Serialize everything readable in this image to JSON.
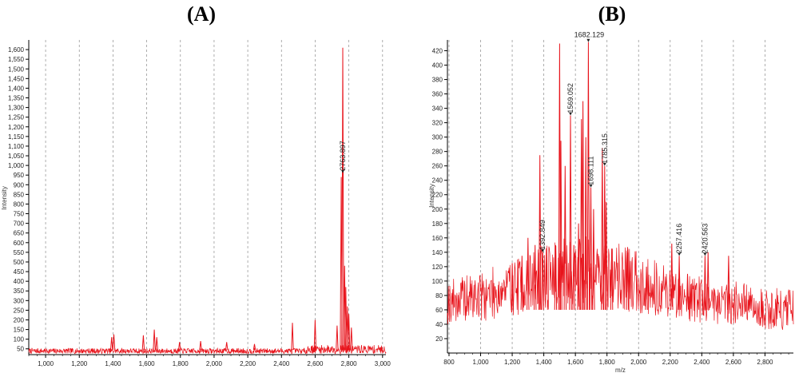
{
  "chart_data": [
    {
      "type": "line",
      "panel_label": "(A)",
      "ylabel": "Intensity",
      "xlabel": "",
      "xlim": [
        900,
        3020
      ],
      "ylim": [
        20,
        1650
      ],
      "x_ticks": [
        "1,000",
        "1,200",
        "1,400",
        "1,600",
        "1,800",
        "2,000",
        "2,200",
        "2,400",
        "2,600",
        "2,800",
        "3,000"
      ],
      "x_tick_values": [
        1000,
        1200,
        1400,
        1600,
        1800,
        2000,
        2200,
        2400,
        2600,
        2800,
        3000
      ],
      "y_ticks": [
        "50",
        "100",
        "150",
        "200",
        "250",
        "300",
        "350",
        "400",
        "450",
        "500",
        "550",
        "600",
        "650",
        "700",
        "750",
        "800",
        "850",
        "900",
        "950",
        "1,000",
        "1,050",
        "1,100",
        "1,150",
        "1,200",
        "1,250",
        "1,300",
        "1,350",
        "1,400",
        "1,450",
        "1,500",
        "1,550",
        "1,600"
      ],
      "y_tick_values": [
        50,
        100,
        150,
        200,
        250,
        300,
        350,
        400,
        450,
        500,
        550,
        600,
        650,
        700,
        750,
        800,
        850,
        900,
        950,
        1000,
        1050,
        1100,
        1150,
        1200,
        1250,
        1300,
        1350,
        1400,
        1450,
        1500,
        1550,
        1600
      ],
      "grid": "vertical dashed",
      "color": "#e8141c",
      "peaks": [
        {
          "x": 1392,
          "y": 110
        },
        {
          "x": 1405,
          "y": 125
        },
        {
          "x": 1580,
          "y": 120
        },
        {
          "x": 1645,
          "y": 150
        },
        {
          "x": 1660,
          "y": 110
        },
        {
          "x": 1795,
          "y": 85
        },
        {
          "x": 1920,
          "y": 90
        },
        {
          "x": 2075,
          "y": 85
        },
        {
          "x": 2240,
          "y": 75
        },
        {
          "x": 2465,
          "y": 185
        },
        {
          "x": 2600,
          "y": 200
        },
        {
          "x": 2730,
          "y": 170
        },
        {
          "x": 2755,
          "y": 940
        },
        {
          "x": 2763.897,
          "y": 1610
        },
        {
          "x": 2775,
          "y": 480
        },
        {
          "x": 2782,
          "y": 370
        },
        {
          "x": 2792,
          "y": 270
        },
        {
          "x": 2800,
          "y": 230
        },
        {
          "x": 2815,
          "y": 160
        }
      ],
      "annotations": [
        {
          "text": "2763.897",
          "x": 2763.897,
          "y": 960
        }
      ]
    },
    {
      "type": "line",
      "panel_label": "(B)",
      "ylabel": "Intensity",
      "xlabel": "m/z",
      "xlim": [
        790,
        2980
      ],
      "ylim": [
        0,
        435
      ],
      "x_ticks": [
        "800",
        "1,000",
        "1,200",
        "1,400",
        "1,600",
        "1,800",
        "2,000",
        "2,200",
        "2,400",
        "2,600",
        "2,800"
      ],
      "x_tick_values": [
        800,
        1000,
        1200,
        1400,
        1600,
        1800,
        2000,
        2200,
        2400,
        2600,
        2800
      ],
      "y_ticks": [
        "20",
        "40",
        "60",
        "80",
        "100",
        "120",
        "140",
        "160",
        "180",
        "200",
        "220",
        "240",
        "260",
        "280",
        "300",
        "320",
        "340",
        "360",
        "380",
        "400",
        "420"
      ],
      "y_tick_values": [
        20,
        40,
        60,
        80,
        100,
        120,
        140,
        160,
        180,
        200,
        220,
        240,
        260,
        280,
        300,
        320,
        340,
        360,
        380,
        400,
        420
      ],
      "grid": "vertical dashed",
      "color": "#e8141c",
      "peaks": [
        {
          "x": 1200,
          "y": 125
        },
        {
          "x": 1262,
          "y": 135
        },
        {
          "x": 1300,
          "y": 160
        },
        {
          "x": 1345,
          "y": 150
        },
        {
          "x": 1375,
          "y": 275
        },
        {
          "x": 1392.849,
          "y": 140
        },
        {
          "x": 1475,
          "y": 150
        },
        {
          "x": 1500,
          "y": 430
        },
        {
          "x": 1508,
          "y": 295
        },
        {
          "x": 1535,
          "y": 260
        },
        {
          "x": 1569.052,
          "y": 330
        },
        {
          "x": 1590,
          "y": 150
        },
        {
          "x": 1620,
          "y": 180
        },
        {
          "x": 1638,
          "y": 325
        },
        {
          "x": 1648,
          "y": 350
        },
        {
          "x": 1666,
          "y": 300
        },
        {
          "x": 1682.129,
          "y": 432
        },
        {
          "x": 1698.111,
          "y": 230
        },
        {
          "x": 1715,
          "y": 200
        },
        {
          "x": 1770,
          "y": 285
        },
        {
          "x": 1785.315,
          "y": 260
        },
        {
          "x": 1795,
          "y": 210
        },
        {
          "x": 1830,
          "y": 145
        },
        {
          "x": 1930,
          "y": 140
        },
        {
          "x": 2050,
          "y": 120
        },
        {
          "x": 2210,
          "y": 152
        },
        {
          "x": 2257.416,
          "y": 135
        },
        {
          "x": 2310,
          "y": 110
        },
        {
          "x": 2420.563,
          "y": 135
        },
        {
          "x": 2440,
          "y": 140
        },
        {
          "x": 2570,
          "y": 135
        }
      ],
      "annotations": [
        {
          "text": "1682.129",
          "x": 1682.129,
          "y": 432
        },
        {
          "text": "1569.052",
          "x": 1569.052,
          "y": 330
        },
        {
          "text": "1785.315",
          "x": 1785.315,
          "y": 260
        },
        {
          "text": "1698.111",
          "x": 1698.111,
          "y": 230
        },
        {
          "text": "1392.849",
          "x": 1392.849,
          "y": 140
        },
        {
          "text": "2257.416",
          "x": 2257.416,
          "y": 135
        },
        {
          "text": "2420.563",
          "x": 2420.563,
          "y": 135
        }
      ]
    }
  ]
}
